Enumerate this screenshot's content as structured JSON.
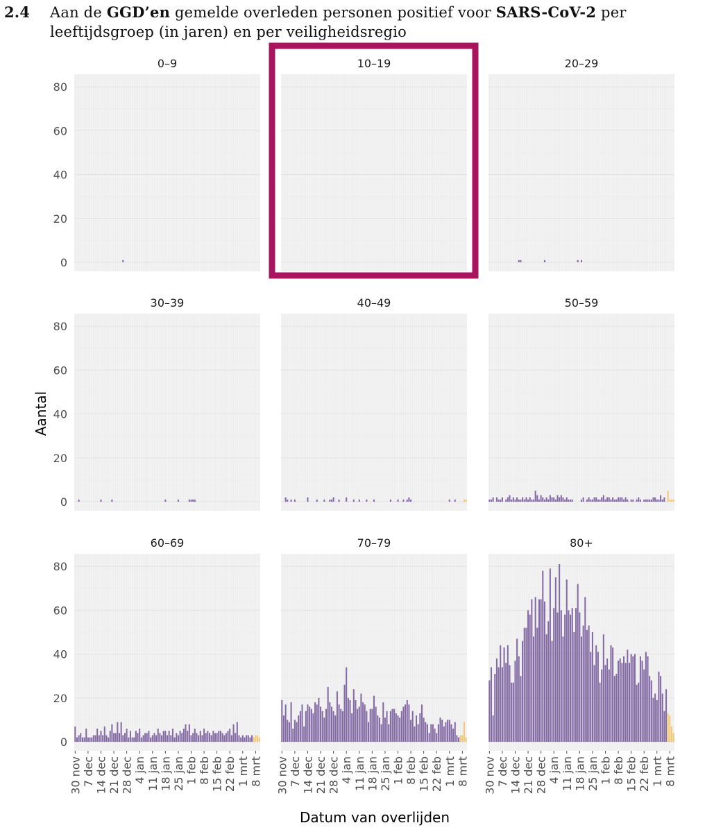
{
  "heading": {
    "number": "2.4",
    "line1_regular_a": "Aan de ",
    "line1_bold_a": "GGD’en",
    "line1_regular_b": " gemelde overleden personen positief voor ",
    "line1_bold_b": "SARS-CoV-2",
    "line1_regular_c": " per",
    "line2": "leeftijdsgroep (in jaren) en per veiligheidsregio"
  },
  "colors": {
    "bar": "#7b5e9e",
    "bar_recent": "#f2c46d",
    "panel_bg": "#f2f2f2",
    "grid_major": "#e2e2e2",
    "grid_minor": "#ebebeb",
    "highlight_box": "#a9145f"
  },
  "chart_data": {
    "type": "bar",
    "layout": "facet 3x3",
    "ylabel": "Aantal",
    "xlabel": "Datum van overlijden",
    "ylim": [
      0,
      85
    ],
    "y_ticks": [
      0,
      20,
      40,
      60,
      80
    ],
    "x_start": "30 nov",
    "x_end": "10 mrt",
    "x_ticks": [
      "30 nov",
      "7 dec",
      "14 dec",
      "21 dec",
      "28 dec",
      "4 jan",
      "11 jan",
      "18 jan",
      "25 jan",
      "1 feb",
      "8 feb",
      "15 feb",
      "22 feb",
      "1 mrt",
      "8 mrt"
    ],
    "recent_days_highlight": 4,
    "highlighted_panel": "10–19",
    "panels": [
      {
        "label": "0–9",
        "values": [
          0,
          0,
          0,
          0,
          0,
          0,
          0,
          0,
          0,
          0,
          0,
          0,
          0,
          0,
          0,
          0,
          0,
          0,
          0,
          0,
          0,
          0,
          0,
          0,
          0,
          0,
          1,
          0,
          0,
          0,
          0,
          0,
          0,
          0,
          0,
          0,
          0,
          0,
          0,
          0,
          0,
          0,
          0,
          0,
          0,
          0,
          0,
          0,
          0,
          0,
          0,
          0,
          0,
          0,
          0,
          0,
          0,
          0,
          0,
          0,
          0,
          0,
          0,
          0,
          0,
          0,
          0,
          0,
          0,
          0,
          0,
          0,
          0,
          0,
          0,
          0,
          0,
          0,
          0,
          0,
          0,
          0,
          0,
          0,
          0,
          0,
          0,
          0,
          0,
          0,
          0,
          0,
          0,
          0,
          0,
          0,
          0,
          0,
          0,
          0,
          0
        ]
      },
      {
        "label": "10–19",
        "values": [
          0,
          0,
          0,
          0,
          0,
          0,
          0,
          0,
          0,
          0,
          0,
          0,
          0,
          0,
          0,
          0,
          0,
          0,
          0,
          0,
          0,
          0,
          0,
          0,
          0,
          0,
          0,
          0,
          0,
          0,
          0,
          0,
          0,
          0,
          0,
          0,
          0,
          0,
          0,
          0,
          0,
          0,
          0,
          0,
          0,
          0,
          0,
          0,
          0,
          0,
          0,
          0,
          0,
          0,
          0,
          0,
          0,
          0,
          0,
          0,
          0,
          0,
          0,
          0,
          0,
          0,
          0,
          0,
          0,
          0,
          0,
          0,
          0,
          0,
          0,
          0,
          0,
          0,
          0,
          0,
          0,
          0,
          0,
          0,
          0,
          0,
          0,
          0,
          0,
          0,
          0,
          0,
          0,
          0,
          0,
          0,
          0,
          0,
          0,
          0,
          0
        ]
      },
      {
        "label": "20–29",
        "values": [
          0,
          0,
          0,
          0,
          0,
          0,
          0,
          0,
          0,
          0,
          0,
          0,
          0,
          0,
          0,
          0,
          1,
          1,
          0,
          0,
          0,
          0,
          0,
          0,
          0,
          0,
          0,
          0,
          0,
          0,
          1,
          0,
          0,
          0,
          0,
          0,
          0,
          0,
          0,
          0,
          0,
          0,
          0,
          0,
          0,
          0,
          0,
          0,
          1,
          0,
          1,
          0,
          0,
          0,
          0,
          0,
          0,
          0,
          0,
          0,
          0,
          0,
          0,
          0,
          0,
          0,
          0,
          0,
          0,
          0,
          0,
          0,
          0,
          0,
          0,
          0,
          0,
          0,
          0,
          0,
          0,
          0,
          0,
          0,
          0,
          0,
          0,
          0,
          0,
          0,
          0,
          0,
          0,
          0,
          0,
          0,
          0,
          0,
          0,
          0,
          0
        ]
      },
      {
        "label": "30–39",
        "values": [
          0,
          0,
          1,
          0,
          0,
          0,
          0,
          0,
          0,
          0,
          0,
          0,
          0,
          0,
          1,
          0,
          0,
          0,
          0,
          0,
          1,
          0,
          0,
          0,
          0,
          0,
          0,
          0,
          0,
          0,
          0,
          0,
          0,
          0,
          0,
          0,
          0,
          0,
          0,
          0,
          0,
          0,
          0,
          0,
          0,
          0,
          0,
          0,
          0,
          1,
          0,
          0,
          0,
          0,
          0,
          0,
          1,
          0,
          0,
          0,
          0,
          0,
          1,
          1,
          1,
          1,
          0,
          0,
          0,
          0,
          0,
          0,
          0,
          0,
          0,
          0,
          0,
          0,
          0,
          0,
          0,
          0,
          0,
          0,
          0,
          0,
          0,
          0,
          0,
          0,
          0,
          0,
          0,
          0,
          0,
          0,
          0,
          0,
          0,
          0,
          0
        ]
      },
      {
        "label": "40–49",
        "values": [
          0,
          0,
          2,
          1,
          0,
          1,
          0,
          1,
          0,
          0,
          0,
          0,
          0,
          0,
          2,
          0,
          0,
          0,
          0,
          1,
          0,
          0,
          0,
          1,
          0,
          0,
          1,
          1,
          2,
          0,
          0,
          1,
          0,
          0,
          0,
          2,
          0,
          0,
          0,
          1,
          0,
          0,
          1,
          0,
          0,
          0,
          1,
          0,
          0,
          0,
          1,
          0,
          0,
          0,
          0,
          0,
          0,
          0,
          0,
          1,
          0,
          0,
          0,
          1,
          0,
          0,
          1,
          0,
          1,
          2,
          1,
          0,
          0,
          0,
          0,
          0,
          0,
          0,
          0,
          0,
          0,
          0,
          0,
          0,
          0,
          0,
          0,
          0,
          0,
          0,
          0,
          1,
          0,
          0,
          1,
          0,
          0,
          0,
          0,
          1,
          1
        ]
      },
      {
        "label": "50–59",
        "values": [
          1,
          1,
          2,
          0,
          2,
          1,
          1,
          2,
          0,
          1,
          2,
          3,
          1,
          2,
          1,
          2,
          1,
          1,
          2,
          1,
          2,
          1,
          2,
          1,
          1,
          5,
          3,
          1,
          3,
          2,
          1,
          2,
          1,
          3,
          2,
          2,
          1,
          3,
          2,
          3,
          2,
          1,
          2,
          1,
          1,
          1,
          0,
          0,
          0,
          0,
          1,
          2,
          0,
          1,
          2,
          1,
          1,
          2,
          2,
          1,
          1,
          2,
          3,
          1,
          2,
          2,
          1,
          2,
          1,
          1,
          2,
          2,
          2,
          1,
          2,
          1,
          0,
          1,
          1,
          0,
          1,
          2,
          1,
          0,
          1,
          1,
          1,
          1,
          1,
          2,
          2,
          1,
          1,
          3,
          1,
          2,
          0,
          5,
          1,
          1,
          1
        ]
      },
      {
        "label": "60–69",
        "values": [
          7,
          2,
          3,
          4,
          2,
          2,
          6,
          2,
          2,
          2,
          3,
          3,
          6,
          3,
          5,
          3,
          7,
          3,
          2,
          5,
          8,
          4,
          4,
          9,
          4,
          9,
          3,
          4,
          6,
          2,
          5,
          2,
          2,
          5,
          4,
          6,
          2,
          3,
          4,
          4,
          5,
          2,
          3,
          4,
          3,
          6,
          4,
          3,
          5,
          5,
          3,
          5,
          3,
          6,
          2,
          4,
          3,
          5,
          4,
          6,
          8,
          5,
          8,
          3,
          4,
          6,
          4,
          3,
          5,
          3,
          6,
          4,
          5,
          4,
          3,
          5,
          4,
          4,
          5,
          5,
          4,
          3,
          4,
          5,
          6,
          3,
          8,
          4,
          9,
          3,
          2,
          3,
          2,
          3,
          3,
          2,
          3,
          2,
          3,
          3,
          2
        ]
      },
      {
        "label": "70–79",
        "values": [
          19,
          12,
          17,
          10,
          9,
          18,
          6,
          10,
          9,
          12,
          14,
          17,
          7,
          14,
          17,
          16,
          15,
          13,
          18,
          17,
          20,
          16,
          14,
          11,
          15,
          25,
          18,
          16,
          14,
          12,
          23,
          17,
          15,
          14,
          26,
          34,
          20,
          19,
          13,
          24,
          19,
          15,
          16,
          22,
          18,
          17,
          14,
          9,
          15,
          15,
          21,
          16,
          12,
          11,
          8,
          18,
          11,
          14,
          8,
          14,
          15,
          15,
          13,
          12,
          11,
          14,
          16,
          17,
          19,
          17,
          10,
          14,
          7,
          12,
          8,
          13,
          17,
          11,
          9,
          8,
          4,
          8,
          8,
          6,
          4,
          8,
          11,
          10,
          7,
          9,
          10,
          10,
          8,
          6,
          9,
          3,
          2,
          3,
          3,
          9,
          2
        ]
      },
      {
        "label": "80+",
        "values": [
          28,
          34,
          12,
          31,
          38,
          34,
          44,
          34,
          43,
          36,
          44,
          35,
          27,
          27,
          37,
          47,
          39,
          30,
          46,
          52,
          52,
          60,
          58,
          65,
          48,
          66,
          52,
          65,
          65,
          78,
          64,
          49,
          55,
          79,
          46,
          61,
          75,
          59,
          81,
          60,
          48,
          58,
          74,
          60,
          58,
          61,
          50,
          61,
          72,
          59,
          48,
          53,
          66,
          51,
          53,
          41,
          50,
          35,
          44,
          41,
          27,
          33,
          49,
          35,
          38,
          33,
          44,
          43,
          30,
          31,
          37,
          38,
          36,
          39,
          36,
          42,
          36,
          40,
          39,
          40,
          26,
          27,
          39,
          37,
          33,
          41,
          39,
          30,
          28,
          20,
          22,
          19,
          32,
          30,
          22,
          14,
          24,
          13,
          12,
          7,
          4
        ]
      }
    ]
  }
}
